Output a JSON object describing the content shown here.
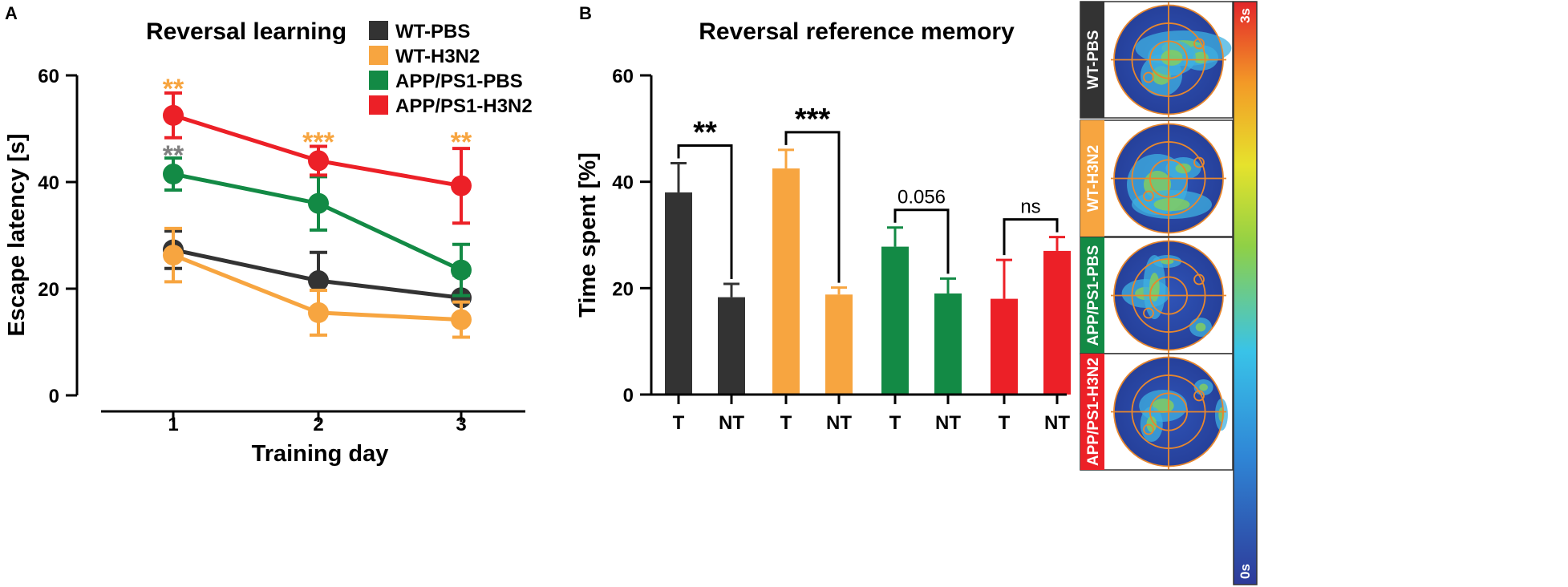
{
  "panels": {
    "a_letter": "A",
    "b_letter": "B"
  },
  "chart_data": [
    {
      "type": "line",
      "title": "Reversal learning",
      "xlabel": "Training day",
      "ylabel": "Escape latency [s]",
      "categories": [
        "1",
        "2",
        "3"
      ],
      "ylim": [
        0,
        60
      ],
      "yticks": [
        "0",
        "20",
        "40",
        "60"
      ],
      "series": [
        {
          "name": "WT-PBS",
          "color": "#333333",
          "values": [
            27.3,
            21.5,
            18.3
          ],
          "errors": [
            3.5,
            5.3,
            4.3
          ]
        },
        {
          "name": "WT-H3N2",
          "color": "#f7a540",
          "values": [
            26.3,
            15.5,
            14.2
          ],
          "errors": [
            5.0,
            4.2,
            3.3
          ]
        },
        {
          "name": "APP/PS1-PBS",
          "color": "#138a45",
          "values": [
            41.5,
            36.0,
            23.5
          ],
          "errors": [
            3.0,
            5.0,
            4.8
          ]
        },
        {
          "name": "APP/PS1-H3N2",
          "color": "#ec2027",
          "values": [
            52.5,
            44.0,
            39.3
          ],
          "errors": [
            4.2,
            2.7,
            7.0
          ]
        }
      ],
      "annotations": [
        {
          "text": "**",
          "category": "1",
          "y": 58.5,
          "color": "#f7a540"
        },
        {
          "text": "**",
          "category": "1",
          "y": 46.0,
          "color": "#808080"
        },
        {
          "text": "***",
          "category": "2",
          "y": 48.5,
          "color": "#f7a540"
        },
        {
          "text": "**",
          "category": "3",
          "y": 48.5,
          "color": "#f7a540"
        }
      ],
      "legend": "top-right"
    },
    {
      "type": "bar",
      "title": "Reversal reference memory",
      "xlabel": "",
      "ylabel": "Time spent [%]",
      "ylim": [
        0,
        60
      ],
      "yticks": [
        "0",
        "20",
        "40",
        "60"
      ],
      "groups": [
        {
          "name": "WT-PBS",
          "color": "#333333",
          "categories": [
            "T",
            "NT"
          ],
          "values": [
            38.0,
            18.3
          ],
          "errors": [
            5.5,
            2.5
          ],
          "sig": "**"
        },
        {
          "name": "WT-H3N2",
          "color": "#f7a540",
          "categories": [
            "T",
            "NT"
          ],
          "values": [
            42.5,
            18.8
          ],
          "errors": [
            3.5,
            1.3
          ],
          "sig": "***"
        },
        {
          "name": "APP/PS1-PBS",
          "color": "#138a45",
          "categories": [
            "T",
            "NT"
          ],
          "values": [
            27.8,
            19.0
          ],
          "errors": [
            3.6,
            2.8
          ],
          "sig": "0.056"
        },
        {
          "name": "APP/PS1-H3N2",
          "color": "#ec2027",
          "categories": [
            "T",
            "NT"
          ],
          "values": [
            18.0,
            27.0
          ],
          "errors": [
            7.3,
            2.6
          ],
          "sig": "ns"
        }
      ]
    }
  ],
  "heatmaps": {
    "labels": [
      {
        "text": "WT-PBS",
        "color": "#333333"
      },
      {
        "text": "WT-H3N2",
        "color": "#f7a540"
      },
      {
        "text": "APP/PS1-PBS",
        "color": "#138a45"
      },
      {
        "text": "APP/PS1-H3N2",
        "color": "#ec2027"
      }
    ],
    "colorbar": {
      "max_label": "3s",
      "min_label": "0s"
    }
  }
}
